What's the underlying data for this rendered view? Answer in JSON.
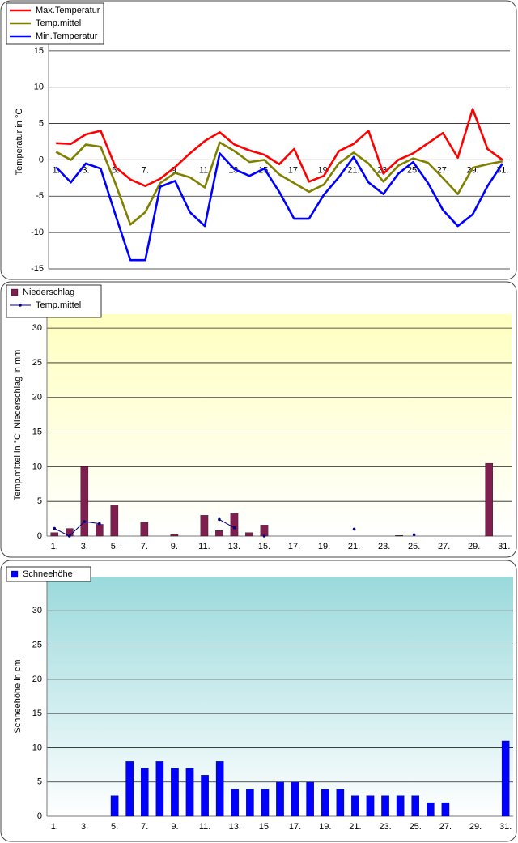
{
  "chart_data": [
    {
      "type": "line",
      "y_label": "Temperatur  in °C",
      "categories": [
        "1.",
        null,
        "3.",
        null,
        "5.",
        null,
        "7.",
        null,
        "9.",
        null,
        "11.",
        null,
        "13.",
        null,
        "15.",
        null,
        "17.",
        null,
        "19.",
        null,
        "21.",
        null,
        "23.",
        null,
        "25.",
        null,
        "27.",
        null,
        "29.",
        null,
        "31."
      ],
      "ylim": [
        -15,
        20
      ],
      "yticks": [
        -15,
        -10,
        -5,
        0,
        5,
        10,
        15
      ],
      "grid": true,
      "series": [
        {
          "name": "Max.Temperatur",
          "color": "#ff0000",
          "values": [
            2.3,
            2.2,
            3.5,
            4.0,
            -1.0,
            -2.7,
            -3.6,
            -2.6,
            -1.0,
            0.9,
            2.6,
            3.8,
            2.1,
            1.3,
            0.7,
            -0.6,
            1.5,
            -3.0,
            -2.2,
            1.2,
            2.2,
            4.0,
            -1.9,
            0,
            0.9,
            2.3,
            3.7,
            0.3,
            7.0,
            1.5,
            0
          ]
        },
        {
          "name": "Temp.mittel",
          "color": "#808000",
          "values": [
            1.1,
            0,
            2.1,
            1.8,
            -3.3,
            -8.9,
            -7.2,
            -3.2,
            -1.8,
            -2.4,
            -3.8,
            2.4,
            1.2,
            -0.3,
            0,
            -2.0,
            -3.2,
            -4.4,
            -3.4,
            -0.5,
            1.0,
            -0.5,
            -3.0,
            -0.8,
            0.2,
            -0.4,
            -2.5,
            -4.7,
            -1.1,
            -0.6,
            -0.2
          ]
        },
        {
          "name": "Min.Temperatur",
          "color": "#0000ff",
          "values": [
            -1.0,
            -3.1,
            -0.5,
            -1.2,
            -7.6,
            -13.8,
            -13.8,
            -3.7,
            -2.9,
            -7.2,
            -9.1,
            0.9,
            -1.3,
            -2.2,
            -1.2,
            -4.4,
            -8.1,
            -8.1,
            -4.8,
            -2.4,
            0.4,
            -3.1,
            -4.7,
            -1.9,
            -0.3,
            -3.2,
            -6.9,
            -9.1,
            -7.5,
            -3.6,
            -0.5
          ]
        }
      ]
    },
    {
      "type": "bar",
      "y_label": "Temp.mittel  in °C, Niederschlag in mm",
      "categories": [
        "1.",
        null,
        "3.",
        null,
        "5.",
        null,
        "7.",
        null,
        "9.",
        null,
        "11.",
        null,
        "13.",
        null,
        "15.",
        null,
        "17.",
        null,
        "19.",
        null,
        "21.",
        null,
        "23.",
        null,
        "25.",
        null,
        "27.",
        null,
        "29.",
        null,
        "31."
      ],
      "ylim": [
        0,
        32
      ],
      "yticks": [
        0,
        5,
        10,
        15,
        20,
        25,
        30
      ],
      "grid": true,
      "series": [
        {
          "name": "Niederschlag",
          "type": "bar",
          "color": "#7f1f4f",
          "values": [
            0.5,
            1.1,
            10.0,
            1.7,
            4.4,
            0,
            2.0,
            0,
            0.2,
            0,
            3.0,
            0.8,
            3.3,
            0.5,
            1.6,
            0,
            0,
            0,
            0,
            0,
            0,
            0,
            0,
            0.1,
            0,
            0,
            0,
            0,
            0,
            10.5,
            0
          ]
        },
        {
          "name": "Temp.mittel",
          "type": "line",
          "color": "#000080",
          "values": [
            1.1,
            0,
            2.1,
            1.8,
            null,
            null,
            null,
            null,
            null,
            null,
            null,
            2.4,
            1.2,
            null,
            0,
            null,
            null,
            null,
            null,
            null,
            1.0,
            null,
            null,
            null,
            0.2,
            null,
            null,
            null,
            null,
            null,
            null
          ]
        }
      ]
    },
    {
      "type": "bar",
      "y_label": "Schneehöhe in cm",
      "categories": [
        "1.",
        null,
        "3.",
        null,
        "5.",
        null,
        "7.",
        null,
        "9.",
        null,
        "11.",
        null,
        "13.",
        null,
        "15.",
        null,
        "17.",
        null,
        "19.",
        null,
        "21.",
        null,
        "23.",
        null,
        "25.",
        null,
        "27.",
        null,
        "29.",
        null,
        "31."
      ],
      "ylim": [
        0,
        35
      ],
      "yticks": [
        0,
        5,
        10,
        15,
        20,
        25,
        30
      ],
      "grid": true,
      "series": [
        {
          "name": "Schneehöhe",
          "type": "bar",
          "color": "#0000ff",
          "values": [
            0,
            0,
            0,
            0,
            3,
            8,
            7,
            8,
            7,
            7,
            6,
            8,
            4,
            4,
            4,
            5,
            5,
            5,
            4,
            4,
            3,
            3,
            3,
            3,
            3,
            2,
            2,
            0,
            0,
            0,
            11
          ]
        }
      ]
    }
  ]
}
